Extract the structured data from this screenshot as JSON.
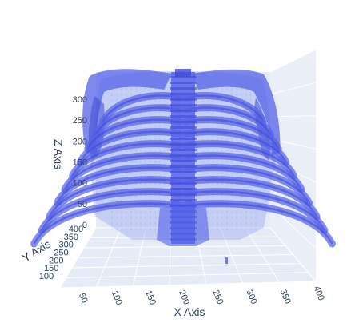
{
  "chart_data": {
    "type": "volume-3d",
    "description_free": true,
    "colors": {
      "volume": "#5462e8",
      "volume_dark": "#3f4bd6",
      "pane": "#e5ecf6",
      "pane_side": "#e9eef7",
      "grid": "#ffffff",
      "text": "#2a3f5f"
    },
    "axes": {
      "x": {
        "title": "X Axis",
        "range": [
          50,
          400
        ],
        "ticks": [
          "50",
          "100",
          "150",
          "200",
          "250",
          "300",
          "350",
          "400"
        ]
      },
      "y": {
        "title": "Y Axis",
        "range": [
          100,
          400
        ],
        "ticks": [
          "100",
          "150",
          "200",
          "250",
          "300",
          "350",
          "400"
        ]
      },
      "z": {
        "title": "Z Axis",
        "range": [
          0,
          300
        ],
        "ticks": [
          "0",
          "50",
          "100",
          "150",
          "200",
          "250",
          "300"
        ]
      }
    }
  }
}
